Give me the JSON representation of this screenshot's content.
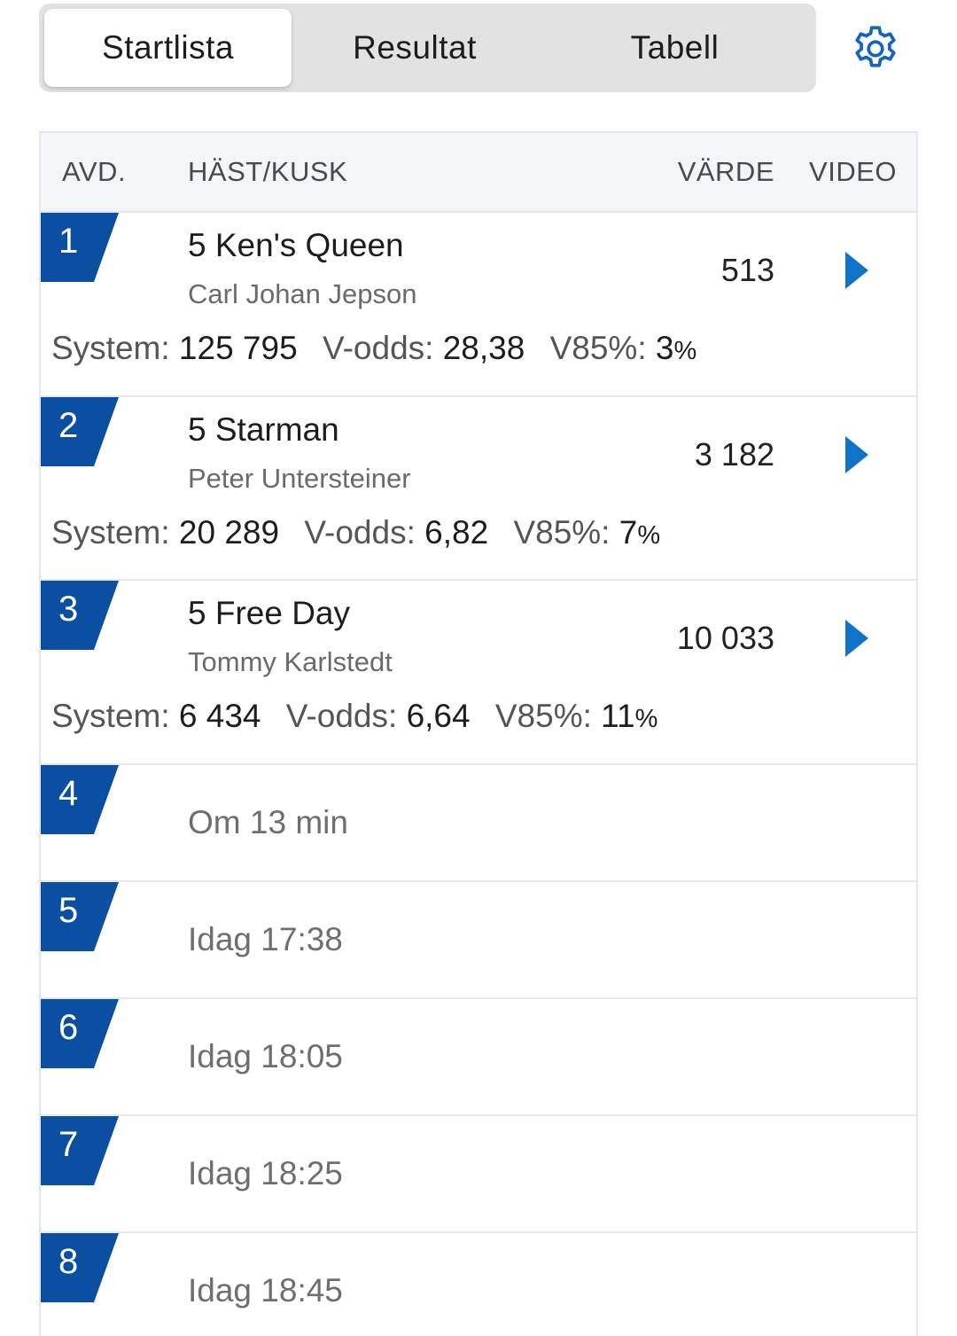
{
  "tabs": [
    {
      "label": "Startlista",
      "active": true
    },
    {
      "label": "Resultat",
      "active": false
    },
    {
      "label": "Tabell",
      "active": false
    }
  ],
  "settings_icon": "gear-icon",
  "header": {
    "avd": "AVD.",
    "horse": "HÄST/KUSK",
    "value": "VÄRDE",
    "video": "VIDEO"
  },
  "colors": {
    "badge": "#0b4fa3",
    "play": "#1173c6",
    "accent": "#1565c0"
  },
  "races": [
    {
      "num": "1",
      "horse": "5 Ken's Queen",
      "driver": "Carl Johan Jepson",
      "value": "513",
      "system_label": "System:",
      "system": "125 795",
      "odds_label": "V-odds:",
      "odds": "28,38",
      "pct_label": "V85%:",
      "pct": "3",
      "pct_sign": "%"
    },
    {
      "num": "2",
      "horse": "5 Starman",
      "driver": "Peter Untersteiner",
      "value": "3 182",
      "system_label": "System:",
      "system": "20 289",
      "odds_label": "V-odds:",
      "odds": "6,82",
      "pct_label": "V85%:",
      "pct": "7",
      "pct_sign": "%"
    },
    {
      "num": "3",
      "horse": "5 Free Day",
      "driver": "Tommy Karlstedt",
      "value": "10 033",
      "system_label": "System:",
      "system": "6 434",
      "odds_label": "V-odds:",
      "odds": "6,64",
      "pct_label": "V85%:",
      "pct": "11",
      "pct_sign": "%"
    }
  ],
  "upcoming": [
    {
      "num": "4",
      "time": "Om 13 min"
    },
    {
      "num": "5",
      "time": "Idag 17:38"
    },
    {
      "num": "6",
      "time": "Idag 18:05"
    },
    {
      "num": "7",
      "time": "Idag 18:25"
    },
    {
      "num": "8",
      "time": "Idag 18:45"
    }
  ]
}
